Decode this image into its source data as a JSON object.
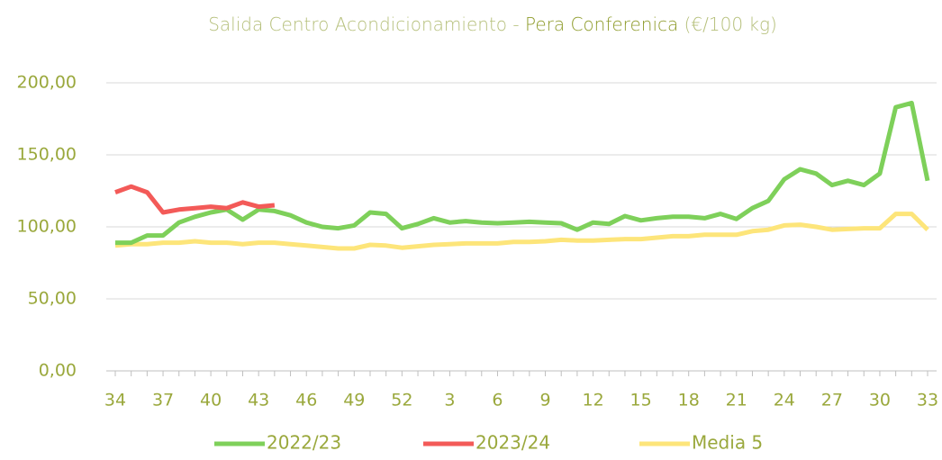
{
  "chart_data": {
    "type": "line",
    "title": [
      "Salida Centro Acondicionamiento - ",
      "Pera Conferenica",
      " (€/100 kg)"
    ],
    "categories": [
      "34",
      null,
      null,
      "37",
      null,
      null,
      "40",
      null,
      null,
      "43",
      null,
      null,
      "46",
      null,
      null,
      "49",
      null,
      null,
      "52",
      null,
      null,
      "3",
      null,
      null,
      "6",
      null,
      null,
      "9",
      null,
      null,
      "12",
      null,
      null,
      "15",
      null,
      null,
      "18",
      null,
      null,
      "21",
      null,
      null,
      "24",
      null,
      null,
      "27",
      null,
      null,
      "30",
      null,
      null,
      "33"
    ],
    "series": [
      {
        "name": "2022/23",
        "color": "#7ed05a",
        "values": [
          89,
          89,
          94,
          94,
          103,
          107,
          110,
          112,
          105,
          112,
          111,
          108,
          103,
          100,
          99,
          101,
          110,
          109,
          99,
          102,
          106,
          103,
          104,
          103,
          102.5,
          103,
          103.5,
          103,
          102.5,
          98,
          103,
          102,
          107.5,
          104.5,
          106,
          107,
          107,
          106,
          109,
          105.5,
          113,
          118,
          133,
          140,
          137,
          129,
          132,
          129,
          137,
          183,
          186,
          132
        ]
      },
      {
        "name": "2023/24",
        "color": "#f35a58",
        "values": [
          124,
          128,
          124,
          110,
          112,
          113,
          114,
          113,
          117,
          114,
          115,
          null,
          null,
          null,
          null,
          null,
          null,
          null,
          null,
          null,
          null,
          null,
          null,
          null,
          null,
          null,
          null,
          null,
          null,
          null,
          null,
          null,
          null,
          null,
          null,
          null,
          null,
          null,
          null,
          null,
          null,
          null,
          null,
          null,
          null,
          null,
          null,
          null,
          null,
          null,
          null,
          null
        ]
      },
      {
        "name": "Media 5",
        "color": "#fde57a",
        "values": [
          87,
          88,
          88,
          89,
          89,
          90,
          89,
          89,
          88,
          89,
          89,
          88,
          87,
          86,
          85,
          85,
          87.5,
          87,
          85.5,
          86.5,
          87.5,
          88,
          88.5,
          88.5,
          88.5,
          89.5,
          89.5,
          90,
          91,
          90.5,
          90.5,
          91,
          91.5,
          91.5,
          92.5,
          93.5,
          93.5,
          94.5,
          94.5,
          94.5,
          97,
          98,
          101,
          101.5,
          100,
          98,
          98.5,
          99,
          99,
          109,
          109,
          98
        ]
      }
    ],
    "ylim": [
      0,
      200
    ],
    "yticks": [
      {
        "value": 0,
        "label": "0,00"
      },
      {
        "value": 50,
        "label": "50,00"
      },
      {
        "value": 100,
        "label": "100,00"
      },
      {
        "value": 150,
        "label": "150,00"
      },
      {
        "value": 200,
        "label": "200,00"
      }
    ],
    "grid": true,
    "legend": "bottom"
  }
}
